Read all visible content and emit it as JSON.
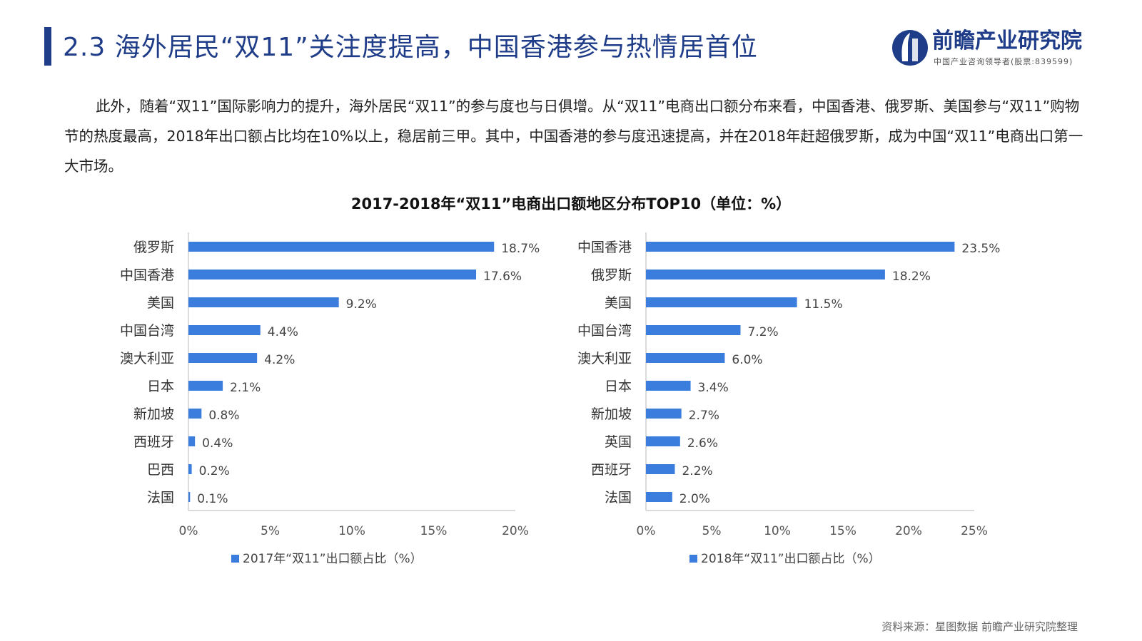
{
  "header": {
    "title": "2.3 海外居民“双11”关注度提高，中国香港参与热情居首位",
    "logo_name": "前瞻产业研究院",
    "logo_sub": "中国产业咨询领导者(股票:839599)"
  },
  "intro": "此外，随着“双11”国际影响力的提升，海外居民“双11”的参与度也与日俱增。从“双11”电商出口额分布来看，中国香港、俄罗斯、美国参与“双11”购物节的热度最高，2018年出口额占比均在10%以上，稳居前三甲。其中，中国香港的参与度迅速提高，并在2018年赶超俄罗斯，成为中国“双11”电商出口第一大市场。",
  "chart_title": "2017-2018年“双11”电商出口额地区分布TOP10（单位：%）",
  "source": "资料来源：星图数据 前瞻产业研究院整理",
  "colors": {
    "bar": "#3b7ddd",
    "title": "#1f3c88",
    "axis": "#cfcfcf"
  },
  "chart_data": [
    {
      "type": "bar",
      "orientation": "horizontal",
      "categories": [
        "俄罗斯",
        "中国香港",
        "美国",
        "中国台湾",
        "澳大利亚",
        "日本",
        "新加坡",
        "西班牙",
        "巴西",
        "法国"
      ],
      "series": [
        {
          "name": "2017年“双11”出口额占比（%）",
          "values": [
            18.7,
            17.6,
            9.2,
            4.4,
            4.2,
            2.1,
            0.8,
            0.4,
            0.2,
            0.1
          ]
        }
      ],
      "value_labels": [
        "18.7%",
        "17.6%",
        "9.2%",
        "4.4%",
        "4.2%",
        "2.1%",
        "0.8%",
        "0.4%",
        "0.2%",
        "0.1%"
      ],
      "xlim": [
        0,
        20
      ],
      "xticks": [
        "0%",
        "5%",
        "10%",
        "15%",
        "20%"
      ],
      "legend_position": "bottom"
    },
    {
      "type": "bar",
      "orientation": "horizontal",
      "categories": [
        "中国香港",
        "俄罗斯",
        "美国",
        "中国台湾",
        "澳大利亚",
        "日本",
        "新加坡",
        "英国",
        "西班牙",
        "法国"
      ],
      "series": [
        {
          "name": "2018年“双11”出口额占比（%）",
          "values": [
            23.5,
            18.2,
            11.5,
            7.2,
            6.0,
            3.4,
            2.7,
            2.6,
            2.2,
            2.0
          ]
        }
      ],
      "value_labels": [
        "23.5%",
        "18.2%",
        "11.5%",
        "7.2%",
        "6.0%",
        "3.4%",
        "2.7%",
        "2.6%",
        "2.2%",
        "2.0%"
      ],
      "xlim": [
        0,
        25
      ],
      "xticks": [
        "0%",
        "5%",
        "10%",
        "15%",
        "20%",
        "25%"
      ],
      "legend_position": "bottom"
    }
  ]
}
